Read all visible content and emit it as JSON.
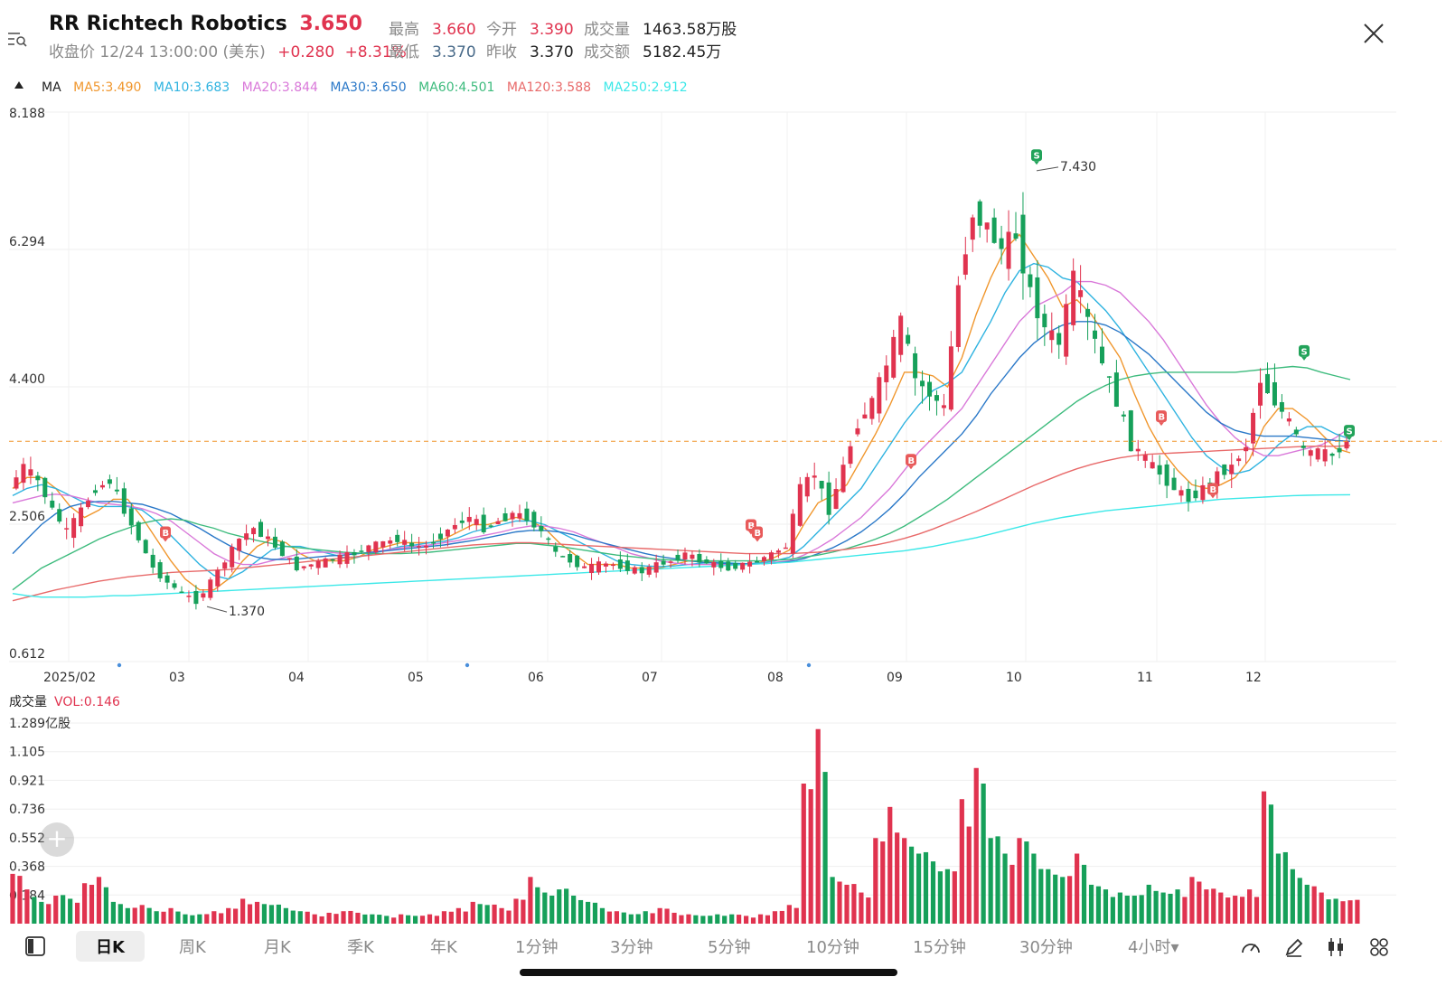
{
  "header": {
    "symbol": "RR",
    "name": "Richtech Robotics",
    "price": "3.650",
    "close_label": "收盘价 12/24 13:00:00 (美东)",
    "change": "+0.280",
    "change_pct": "+8.31%",
    "stats": {
      "high_label": "最高",
      "high": "3.660",
      "open_label": "今开",
      "open": "3.390",
      "volume_label": "成交量",
      "volume": "1463.58万股",
      "low_label": "最低",
      "low": "3.370",
      "prev_label": "昨收",
      "prev": "3.370",
      "turnover_label": "成交额",
      "turnover": "5182.45万"
    },
    "icons": {
      "menu": "search-list-icon",
      "close": "close-icon"
    }
  },
  "ma_bar": {
    "label": "MA",
    "items": [
      {
        "text": "MA5:3.490",
        "color": "#f0962c"
      },
      {
        "text": "MA10:3.683",
        "color": "#2fb3e0"
      },
      {
        "text": "MA20:3.844",
        "color": "#d978d9"
      },
      {
        "text": "MA30:3.650",
        "color": "#2a78c8"
      },
      {
        "text": "MA60:4.501",
        "color": "#3dbb7d"
      },
      {
        "text": "MA120:3.588",
        "color": "#e86a6a"
      },
      {
        "text": "MA250:2.912",
        "color": "#3ce8e8"
      }
    ]
  },
  "chart_data": {
    "type": "candlestick",
    "y_ticks": [
      "8.188",
      "6.294",
      "4.400",
      "2.506",
      "0.612"
    ],
    "ylim": [
      0.612,
      8.188
    ],
    "x_ticks": [
      "2025/02",
      "03",
      "04",
      "05",
      "06",
      "07",
      "08",
      "09",
      "10",
      "11",
      "12"
    ],
    "last_price": 3.65,
    "annotations": [
      {
        "text": "7.430",
        "kind": "high"
      },
      {
        "text": "1.370",
        "kind": "low"
      }
    ],
    "trade_markers": [
      {
        "label": "B",
        "price": 2.3
      },
      {
        "label": "B",
        "price": 2.4
      },
      {
        "label": "B",
        "price": 2.3
      },
      {
        "label": "B",
        "price": 3.3
      },
      {
        "label": "B",
        "price": 3.9
      },
      {
        "label": "B",
        "price": 2.9
      },
      {
        "label": "S",
        "price": 7.5
      },
      {
        "label": "S",
        "price": 4.8
      },
      {
        "label": "S",
        "price": 3.7
      }
    ],
    "price_path": [
      3.0,
      3.3,
      3.1,
      2.7,
      2.4,
      2.7,
      3.0,
      3.1,
      2.7,
      2.3,
      1.9,
      1.7,
      1.55,
      1.45,
      1.7,
      2.0,
      2.3,
      2.45,
      2.3,
      2.1,
      1.9,
      1.95,
      2.0,
      2.05,
      2.1,
      2.2,
      2.25,
      2.3,
      2.2,
      2.2,
      2.35,
      2.5,
      2.6,
      2.45,
      2.55,
      2.65,
      2.6,
      2.4,
      2.1,
      2.0,
      1.9,
      1.95,
      1.95,
      1.9,
      1.85,
      1.95,
      2.0,
      2.1,
      2.0,
      1.95,
      1.9,
      1.95,
      2.0,
      2.1,
      2.2,
      3.0,
      3.2,
      2.7,
      3.3,
      3.9,
      4.2,
      4.7,
      5.3,
      4.5,
      4.3,
      4.1,
      5.8,
      6.8,
      6.6,
      6.3,
      6.5,
      5.7,
      5.2,
      5.0,
      5.9,
      5.3,
      4.7,
      4.2,
      3.6,
      3.4,
      3.2,
      3.0,
      2.85,
      3.0,
      3.2,
      3.3,
      3.6,
      4.5,
      4.2,
      3.9,
      3.5,
      3.5,
      3.45,
      3.65
    ],
    "ma_lines": [
      {
        "name": "MA5",
        "color": "#f0962c",
        "values": [
          3.0,
          3.15,
          3.15,
          3.0,
          2.75,
          2.6,
          2.7,
          2.85,
          2.85,
          2.6,
          2.3,
          2.0,
          1.75,
          1.6,
          1.6,
          1.75,
          2.0,
          2.2,
          2.3,
          2.25,
          2.1,
          2.0,
          2.0,
          2.0,
          2.05,
          2.15,
          2.2,
          2.25,
          2.25,
          2.25,
          2.3,
          2.4,
          2.5,
          2.5,
          2.55,
          2.6,
          2.55,
          2.45,
          2.25,
          2.1,
          1.95,
          1.95,
          1.95,
          1.9,
          1.9,
          1.9,
          1.95,
          2.0,
          2.0,
          1.98,
          1.95,
          1.95,
          1.98,
          2.05,
          2.15,
          2.5,
          2.8,
          2.9,
          3.05,
          3.4,
          3.75,
          4.15,
          4.6,
          4.6,
          4.55,
          4.4,
          4.8,
          5.4,
          5.9,
          6.3,
          6.5,
          6.2,
          5.9,
          5.5,
          5.6,
          5.4,
          5.1,
          4.8,
          4.3,
          3.85,
          3.5,
          3.25,
          3.05,
          3.0,
          3.05,
          3.15,
          3.4,
          3.85,
          4.1,
          4.1,
          3.95,
          3.75,
          3.55,
          3.49
        ]
      },
      {
        "name": "MA10",
        "color": "#2fb3e0",
        "values": [
          2.9,
          3.0,
          3.05,
          3.0,
          2.9,
          2.8,
          2.75,
          2.75,
          2.75,
          2.7,
          2.55,
          2.35,
          2.15,
          1.95,
          1.8,
          1.75,
          1.85,
          2.0,
          2.15,
          2.2,
          2.2,
          2.15,
          2.1,
          2.05,
          2.05,
          2.1,
          2.15,
          2.2,
          2.22,
          2.25,
          2.27,
          2.32,
          2.4,
          2.45,
          2.5,
          2.55,
          2.55,
          2.5,
          2.4,
          2.3,
          2.2,
          2.1,
          2.0,
          1.95,
          1.93,
          1.92,
          1.93,
          1.95,
          1.97,
          1.98,
          1.97,
          1.96,
          1.97,
          2.0,
          2.05,
          2.2,
          2.4,
          2.6,
          2.8,
          3.0,
          3.3,
          3.6,
          3.9,
          4.15,
          4.35,
          4.45,
          4.6,
          4.95,
          5.3,
          5.7,
          6.0,
          6.1,
          6.05,
          5.9,
          5.85,
          5.65,
          5.45,
          5.2,
          4.9,
          4.6,
          4.3,
          4.0,
          3.7,
          3.45,
          3.3,
          3.2,
          3.25,
          3.4,
          3.6,
          3.75,
          3.85,
          3.85,
          3.75,
          3.68
        ]
      },
      {
        "name": "MA20",
        "color": "#d978d9",
        "values": [
          2.8,
          2.85,
          2.9,
          2.92,
          2.9,
          2.85,
          2.8,
          2.78,
          2.76,
          2.72,
          2.65,
          2.55,
          2.4,
          2.25,
          2.1,
          2.0,
          1.95,
          1.95,
          2.0,
          2.05,
          2.1,
          2.12,
          2.12,
          2.1,
          2.1,
          2.12,
          2.15,
          2.18,
          2.2,
          2.22,
          2.25,
          2.28,
          2.32,
          2.36,
          2.4,
          2.45,
          2.48,
          2.48,
          2.45,
          2.4,
          2.32,
          2.25,
          2.18,
          2.1,
          2.05,
          2.0,
          1.97,
          1.95,
          1.95,
          1.95,
          1.95,
          1.95,
          1.96,
          1.98,
          2.0,
          2.08,
          2.18,
          2.3,
          2.45,
          2.6,
          2.8,
          3.0,
          3.25,
          3.5,
          3.7,
          3.9,
          4.1,
          4.4,
          4.7,
          5.0,
          5.3,
          5.5,
          5.6,
          5.7,
          5.85,
          5.85,
          5.8,
          5.7,
          5.5,
          5.3,
          5.05,
          4.75,
          4.45,
          4.15,
          3.9,
          3.7,
          3.55,
          3.45,
          3.45,
          3.5,
          3.55,
          3.6,
          3.7,
          3.84
        ]
      },
      {
        "name": "MA30",
        "color": "#2a78c8",
        "values": [
          2.1,
          2.3,
          2.5,
          2.65,
          2.75,
          2.8,
          2.82,
          2.82,
          2.8,
          2.78,
          2.72,
          2.65,
          2.55,
          2.45,
          2.33,
          2.22,
          2.12,
          2.05,
          2.02,
          2.02,
          2.03,
          2.05,
          2.07,
          2.08,
          2.1,
          2.12,
          2.14,
          2.16,
          2.18,
          2.2,
          2.22,
          2.25,
          2.28,
          2.32,
          2.36,
          2.4,
          2.42,
          2.42,
          2.4,
          2.36,
          2.3,
          2.25,
          2.2,
          2.15,
          2.1,
          2.06,
          2.03,
          2.0,
          1.98,
          1.97,
          1.96,
          1.96,
          1.96,
          1.97,
          1.99,
          2.03,
          2.1,
          2.18,
          2.28,
          2.4,
          2.55,
          2.72,
          2.92,
          3.15,
          3.35,
          3.55,
          3.75,
          4.0,
          4.3,
          4.55,
          4.8,
          5.0,
          5.15,
          5.25,
          5.3,
          5.3,
          5.25,
          5.15,
          5.0,
          4.85,
          4.65,
          4.45,
          4.25,
          4.05,
          3.9,
          3.8,
          3.75,
          3.72,
          3.72,
          3.72,
          3.7,
          3.68,
          3.66,
          3.65
        ]
      },
      {
        "name": "MA60",
        "color": "#3dbb7d",
        "values": [
          1.6,
          1.75,
          1.9,
          2.0,
          2.1,
          2.2,
          2.3,
          2.38,
          2.45,
          2.52,
          2.56,
          2.58,
          2.56,
          2.5,
          2.45,
          2.38,
          2.33,
          2.28,
          2.24,
          2.2,
          2.18,
          2.16,
          2.14,
          2.12,
          2.11,
          2.1,
          2.1,
          2.1,
          2.11,
          2.12,
          2.14,
          2.16,
          2.18,
          2.2,
          2.22,
          2.24,
          2.24,
          2.22,
          2.2,
          2.17,
          2.14,
          2.11,
          2.08,
          2.06,
          2.04,
          2.02,
          2.01,
          2.0,
          2.0,
          2.0,
          2.0,
          2.0,
          2.0,
          2.01,
          2.02,
          2.05,
          2.08,
          2.12,
          2.17,
          2.23,
          2.3,
          2.38,
          2.48,
          2.6,
          2.72,
          2.85,
          3.0,
          3.15,
          3.3,
          3.45,
          3.6,
          3.75,
          3.9,
          4.05,
          4.2,
          4.32,
          4.42,
          4.5,
          4.55,
          4.58,
          4.6,
          4.6,
          4.6,
          4.6,
          4.6,
          4.6,
          4.62,
          4.64,
          4.66,
          4.68,
          4.66,
          4.6,
          4.55,
          4.5
        ]
      },
      {
        "name": "MA120",
        "color": "#e86a6a",
        "values": [
          1.45,
          1.5,
          1.55,
          1.6,
          1.64,
          1.68,
          1.72,
          1.75,
          1.78,
          1.8,
          1.82,
          1.84,
          1.85,
          1.86,
          1.87,
          1.88,
          1.9,
          1.92,
          1.94,
          1.96,
          1.98,
          2.0,
          2.02,
          2.04,
          2.06,
          2.08,
          2.1,
          2.12,
          2.14,
          2.16,
          2.18,
          2.2,
          2.22,
          2.23,
          2.24,
          2.25,
          2.25,
          2.24,
          2.23,
          2.22,
          2.21,
          2.2,
          2.19,
          2.18,
          2.17,
          2.16,
          2.15,
          2.14,
          2.13,
          2.12,
          2.11,
          2.1,
          2.1,
          2.1,
          2.1,
          2.11,
          2.12,
          2.14,
          2.16,
          2.19,
          2.22,
          2.26,
          2.31,
          2.37,
          2.44,
          2.52,
          2.6,
          2.68,
          2.77,
          2.86,
          2.95,
          3.04,
          3.12,
          3.2,
          3.27,
          3.33,
          3.38,
          3.42,
          3.45,
          3.47,
          3.48,
          3.49,
          3.5,
          3.51,
          3.52,
          3.53,
          3.54,
          3.55,
          3.56,
          3.57,
          3.58,
          3.58,
          3.58,
          3.59
        ]
      },
      {
        "name": "MA250",
        "color": "#3ce8e8",
        "values": [
          1.55,
          1.52,
          1.5,
          1.5,
          1.5,
          1.5,
          1.51,
          1.52,
          1.52,
          1.53,
          1.54,
          1.55,
          1.56,
          1.57,
          1.58,
          1.59,
          1.6,
          1.61,
          1.62,
          1.63,
          1.64,
          1.65,
          1.66,
          1.67,
          1.68,
          1.69,
          1.7,
          1.71,
          1.72,
          1.73,
          1.74,
          1.75,
          1.76,
          1.77,
          1.78,
          1.79,
          1.8,
          1.81,
          1.82,
          1.83,
          1.84,
          1.85,
          1.86,
          1.87,
          1.88,
          1.89,
          1.9,
          1.91,
          1.92,
          1.93,
          1.94,
          1.95,
          1.96,
          1.97,
          1.98,
          2.0,
          2.02,
          2.04,
          2.06,
          2.08,
          2.1,
          2.12,
          2.14,
          2.17,
          2.2,
          2.24,
          2.28,
          2.32,
          2.37,
          2.42,
          2.47,
          2.52,
          2.56,
          2.6,
          2.63,
          2.66,
          2.69,
          2.71,
          2.73,
          2.75,
          2.77,
          2.79,
          2.81,
          2.83,
          2.85,
          2.86,
          2.87,
          2.88,
          2.89,
          2.9,
          2.905,
          2.908,
          2.91,
          2.912
        ]
      }
    ]
  },
  "volume_panel": {
    "label": "成交量",
    "vol_value": "VOL:0.146",
    "y_ticks": [
      "1.289亿股",
      "1.105",
      "0.921",
      "0.736",
      "0.552",
      "0.368",
      "0.184"
    ],
    "ylim": [
      0,
      1.289
    ],
    "values": [
      0.32,
      0.22,
      0.14,
      0.18,
      0.16,
      0.26,
      0.3,
      0.14,
      0.1,
      0.12,
      0.08,
      0.1,
      0.06,
      0.06,
      0.08,
      0.1,
      0.16,
      0.14,
      0.12,
      0.1,
      0.08,
      0.06,
      0.07,
      0.08,
      0.07,
      0.06,
      0.05,
      0.06,
      0.05,
      0.06,
      0.08,
      0.1,
      0.14,
      0.12,
      0.1,
      0.16,
      0.3,
      0.2,
      0.22,
      0.18,
      0.14,
      0.1,
      0.08,
      0.06,
      0.08,
      0.1,
      0.07,
      0.06,
      0.05,
      0.06,
      0.06,
      0.05,
      0.06,
      0.08,
      0.12,
      0.9,
      1.25,
      0.3,
      0.25,
      0.2,
      0.55,
      0.75,
      0.55,
      0.45,
      0.4,
      0.35,
      0.8,
      1.0,
      0.55,
      0.45,
      0.55,
      0.45,
      0.35,
      0.3,
      0.45,
      0.25,
      0.22,
      0.2,
      0.18,
      0.25,
      0.2,
      0.22,
      0.3,
      0.22,
      0.2,
      0.18,
      0.22,
      0.85,
      0.45,
      0.35,
      0.25,
      0.2,
      0.16,
      0.15
    ],
    "up": [
      1,
      1,
      0,
      1,
      0,
      1,
      1,
      0,
      0,
      1,
      0,
      1,
      0,
      0,
      1,
      1,
      1,
      1,
      0,
      0,
      0,
      1,
      1,
      1,
      1,
      0,
      0,
      1,
      0,
      1,
      1,
      1,
      1,
      0,
      1,
      1,
      1,
      0,
      0,
      0,
      0,
      0,
      1,
      0,
      0,
      1,
      1,
      1,
      0,
      0,
      0,
      1,
      1,
      1,
      1,
      1,
      1,
      0,
      1,
      1,
      1,
      1,
      1,
      0,
      0,
      0,
      1,
      1,
      0,
      0,
      1,
      0,
      0,
      0,
      1,
      0,
      0,
      0,
      0,
      0,
      0,
      0,
      1,
      1,
      1,
      1,
      1,
      1,
      0,
      0,
      0,
      1,
      0,
      1
    ]
  },
  "toolbar": {
    "tabs": [
      "日K",
      "周K",
      "月K",
      "季K",
      "年K",
      "1分钟",
      "3分钟",
      "5分钟",
      "10分钟",
      "15分钟",
      "30分钟",
      "4小时▾"
    ],
    "active": "日K",
    "icons": [
      "layout-panel-icon",
      "speed-gauge-icon",
      "draw-pen-icon",
      "candle-settings-icon",
      "grid-menu-icon"
    ]
  }
}
